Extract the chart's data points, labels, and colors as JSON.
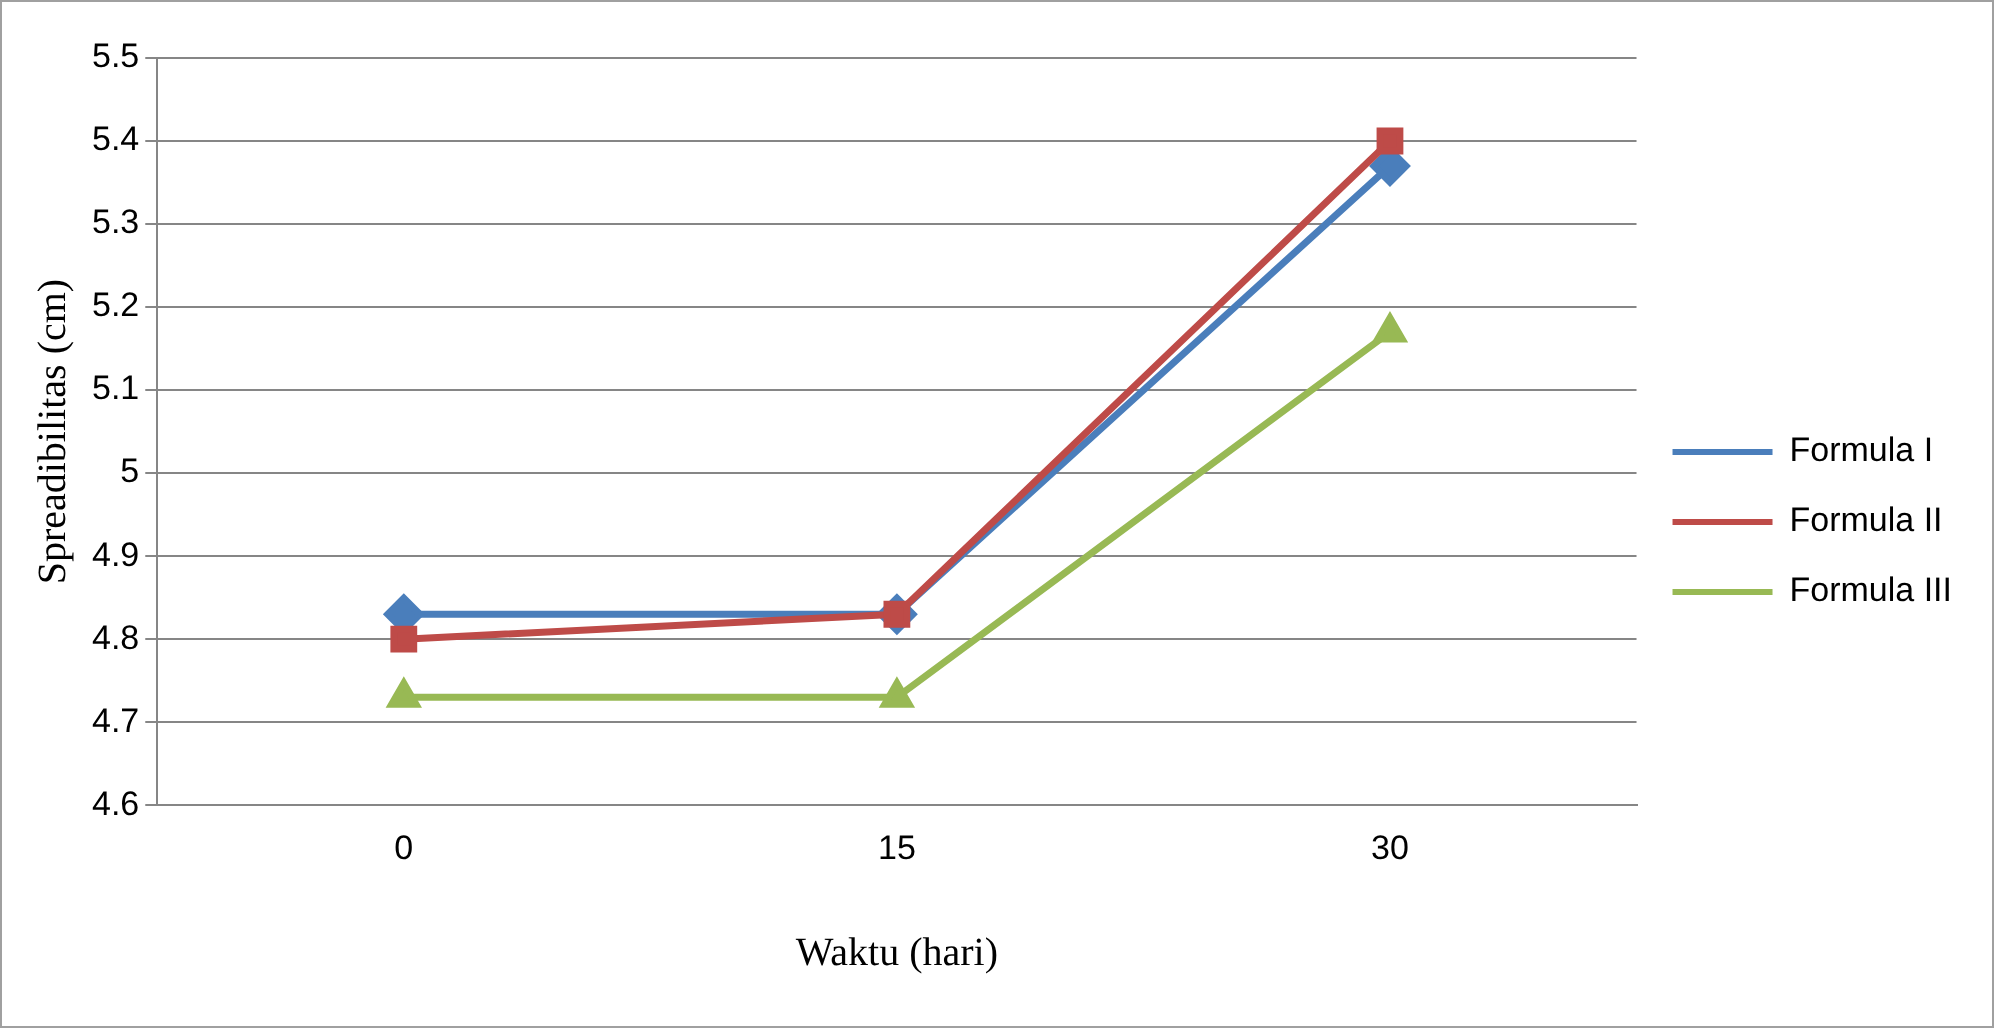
{
  "chart_data": {
    "type": "line",
    "xlabel": "Waktu (hari)",
    "ylabel": "Spreadibilitas (cm)",
    "categories": [
      "0",
      "15",
      "30"
    ],
    "series": [
      {
        "name": "Formula I",
        "color": "#4a7ebb",
        "marker": "diamond",
        "values": [
          4.83,
          4.83,
          5.37
        ]
      },
      {
        "name": "Formula II",
        "color": "#be4b48",
        "marker": "square",
        "values": [
          4.8,
          4.83,
          5.4
        ]
      },
      {
        "name": "Formula III",
        "color": "#98b954",
        "marker": "triangle",
        "values": [
          4.73,
          4.73,
          5.17
        ]
      }
    ],
    "ylim": [
      4.6,
      5.5
    ],
    "yticks": [
      4.6,
      4.7,
      4.8,
      4.9,
      5,
      5.1,
      5.2,
      5.3,
      5.4,
      5.5
    ],
    "grid": "y",
    "legend": "right",
    "line_style": "solid"
  }
}
